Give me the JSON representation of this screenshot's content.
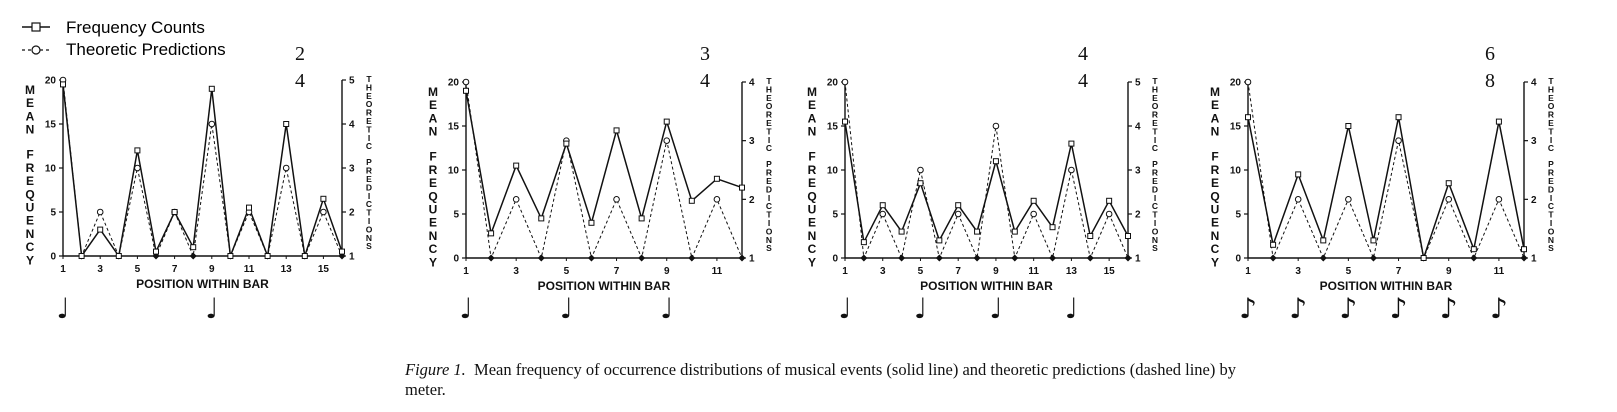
{
  "legend": {
    "solid": "Frequency Counts",
    "dashed": "Theoretic Predictions"
  },
  "caption": {
    "label": "Figure 1.",
    "text": "Mean frequency of occurrence distributions of musical events (solid line) and theoretic predictions (dashed line) by meter."
  },
  "chart_data": [
    {
      "type": "line",
      "meter": [
        "2",
        "4"
      ],
      "xlabel": "POSITION WITHIN BAR",
      "ylabel": "MEAN FREQUENCY",
      "y2label": "THEORETIC PREDICTIONS",
      "x": [
        1,
        2,
        3,
        4,
        5,
        6,
        7,
        8,
        9,
        10,
        11,
        12,
        13,
        14,
        15,
        16
      ],
      "xticks": [
        1,
        3,
        5,
        7,
        9,
        11,
        13,
        15
      ],
      "ylim": [
        0,
        20
      ],
      "yticks": [
        0,
        5,
        10,
        15,
        20
      ],
      "y2lim": [
        1,
        5
      ],
      "y2ticks": [
        1,
        2,
        3,
        4,
        5
      ],
      "series": [
        {
          "name": "Frequency Counts",
          "axis": "left",
          "values": [
            19.5,
            0,
            3,
            0,
            12,
            0.5,
            5,
            1,
            19,
            0,
            5.5,
            0,
            15,
            0,
            6.5,
            0.5
          ]
        },
        {
          "name": "Theoretic Predictions",
          "axis": "right",
          "values": [
            5,
            1,
            2,
            1,
            3,
            1,
            2,
            1,
            4,
            1,
            2,
            1,
            3,
            1,
            2,
            1
          ]
        }
      ],
      "note_symbol": "♩",
      "note_positions": [
        1,
        9
      ]
    },
    {
      "type": "line",
      "meter": [
        "3",
        "4"
      ],
      "xlabel": "POSITION WITHIN BAR",
      "ylabel": "MEAN FREQUENCY",
      "y2label": "THEORETIC PREDICTIONS",
      "x": [
        1,
        2,
        3,
        4,
        5,
        6,
        7,
        8,
        9,
        10,
        11,
        12
      ],
      "xticks": [
        1,
        3,
        5,
        7,
        9,
        11
      ],
      "ylim": [
        0,
        20
      ],
      "yticks": [
        0,
        5,
        10,
        15,
        20
      ],
      "y2lim": [
        1,
        4
      ],
      "y2ticks": [
        1,
        2,
        3,
        4
      ],
      "series": [
        {
          "name": "Frequency Counts",
          "axis": "left",
          "values": [
            19,
            2.8,
            10.5,
            4.5,
            13,
            4,
            14.5,
            4.5,
            15.5,
            6.5,
            9,
            8
          ]
        },
        {
          "name": "Theoretic Predictions",
          "axis": "right",
          "values": [
            4,
            1,
            2,
            1,
            3,
            1,
            2,
            1,
            3,
            1,
            2,
            1
          ]
        }
      ],
      "note_symbol": "♩",
      "note_positions": [
        1,
        5,
        9
      ]
    },
    {
      "type": "line",
      "meter": [
        "4",
        "4"
      ],
      "xlabel": "POSITION WITHIN BAR",
      "ylabel": "MEAN FREQUENCY",
      "y2label": "THEORETIC PREDICTIONS",
      "x": [
        1,
        2,
        3,
        4,
        5,
        6,
        7,
        8,
        9,
        10,
        11,
        12,
        13,
        14,
        15,
        16
      ],
      "xticks": [
        1,
        3,
        5,
        7,
        9,
        11,
        13,
        15
      ],
      "ylim": [
        0,
        20
      ],
      "yticks": [
        0,
        5,
        10,
        15,
        20
      ],
      "y2lim": [
        1,
        5
      ],
      "y2ticks": [
        1,
        2,
        3,
        4,
        5
      ],
      "series": [
        {
          "name": "Frequency Counts",
          "axis": "left",
          "values": [
            15.5,
            1.8,
            6,
            3,
            8.5,
            2,
            6,
            3,
            11,
            3,
            6.5,
            3.5,
            13,
            2.5,
            6.5,
            2.5
          ]
        },
        {
          "name": "Theoretic Predictions",
          "axis": "right",
          "values": [
            5,
            1,
            2,
            1,
            3,
            1,
            2,
            1,
            4,
            1,
            2,
            1,
            3,
            1,
            2,
            1
          ]
        }
      ],
      "note_symbol": "♩",
      "note_positions": [
        1,
        5,
        9,
        13
      ]
    },
    {
      "type": "line",
      "meter": [
        "6",
        "8"
      ],
      "xlabel": "POSITION WITHIN BAR",
      "ylabel": "MEAN FREQUENCY",
      "y2label": "THEORETIC PREDICTIONS",
      "x": [
        1,
        2,
        3,
        4,
        5,
        6,
        7,
        8,
        9,
        10,
        11,
        12
      ],
      "xticks": [
        1,
        3,
        5,
        7,
        9,
        11
      ],
      "ylim": [
        0,
        20
      ],
      "yticks": [
        0,
        5,
        10,
        15,
        20
      ],
      "y2lim": [
        1,
        4
      ],
      "y2ticks": [
        1,
        2,
        3,
        4
      ],
      "series": [
        {
          "name": "Frequency Counts",
          "axis": "left",
          "values": [
            16,
            1.5,
            9.5,
            2,
            15,
            2,
            16,
            0,
            8.5,
            1,
            15.5,
            1
          ]
        },
        {
          "name": "Theoretic Predictions",
          "axis": "right",
          "values": [
            4,
            1,
            2,
            1,
            2,
            1,
            3,
            1,
            2,
            1,
            2,
            1
          ]
        }
      ],
      "note_symbol": "♪",
      "note_positions": [
        1,
        3,
        5,
        7,
        9,
        11
      ]
    }
  ]
}
